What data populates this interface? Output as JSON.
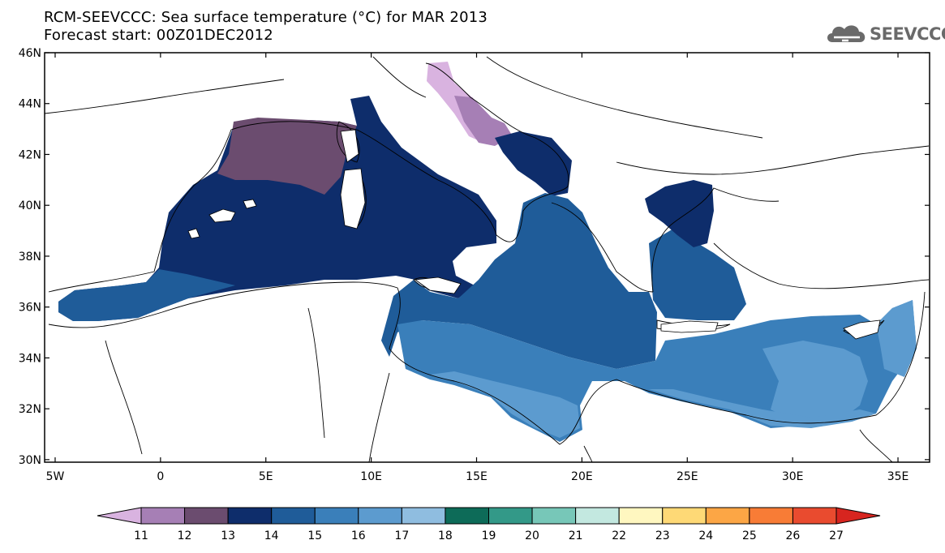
{
  "header": {
    "title_line1": "RCM-SEEVCCC: Sea surface temperature (°C) for MAR 2013",
    "title_line2": "Forecast start: 00Z01DEC2012",
    "logo_text": "SEEVCCC"
  },
  "map": {
    "lon_range": [
      -5.5,
      36.5
    ],
    "lat_range": [
      29.9,
      46.0
    ],
    "lat_ticks": [
      {
        "value": 46,
        "label": "46N"
      },
      {
        "value": 44,
        "label": "44N"
      },
      {
        "value": 42,
        "label": "42N"
      },
      {
        "value": 40,
        "label": "40N"
      },
      {
        "value": 38,
        "label": "38N"
      },
      {
        "value": 36,
        "label": "36N"
      },
      {
        "value": 34,
        "label": "34N"
      },
      {
        "value": 32,
        "label": "32N"
      },
      {
        "value": 30,
        "label": "30N"
      }
    ],
    "lon_ticks": [
      {
        "value": -5,
        "label": "5W"
      },
      {
        "value": 0,
        "label": "0"
      },
      {
        "value": 5,
        "label": "5E"
      },
      {
        "value": 10,
        "label": "10E"
      },
      {
        "value": 15,
        "label": "15E"
      },
      {
        "value": 20,
        "label": "20E"
      },
      {
        "value": 25,
        "label": "25E"
      },
      {
        "value": 30,
        "label": "30E"
      },
      {
        "value": 35,
        "label": "35E"
      }
    ]
  },
  "colorbar": {
    "labels": [
      "11",
      "12",
      "13",
      "14",
      "15",
      "16",
      "17",
      "18",
      "19",
      "20",
      "21",
      "22",
      "23",
      "24",
      "25",
      "26",
      "27"
    ],
    "colors": [
      "#d9b3e0",
      "#a67fb5",
      "#6b4c6f",
      "#0e2d6b",
      "#1f5c99",
      "#3a7fba",
      "#5c9bcf",
      "#8fbde0",
      "#0d6b58",
      "#339988",
      "#77c7b8",
      "#c3e8e0",
      "#fff7c0",
      "#fed976",
      "#fca645",
      "#f87c36",
      "#e94b2f",
      "#d7251f"
    ]
  }
}
